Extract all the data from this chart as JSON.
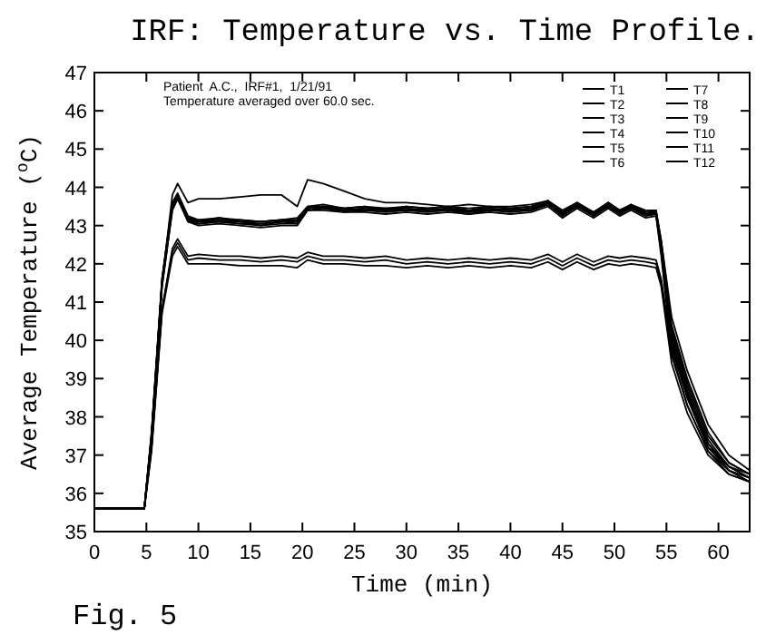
{
  "chart_data": {
    "type": "line",
    "title": "IRF: Temperature vs. Time Profile.",
    "xlabel": "Time (min)",
    "ylabel": "Average Temperature ($^{o}$C)",
    "annotations": [
      "Patient  A.C.,  IRF#1,  1/21/91",
      "Temperature averaged over 60.0 sec.",
      "Fig. 5"
    ],
    "x": [
      0,
      4.8,
      5.5,
      6.5,
      7.5,
      8,
      9,
      10,
      12,
      14,
      16,
      18,
      19.5,
      20.5,
      22,
      24,
      26,
      28,
      30,
      32,
      34,
      36,
      38,
      40,
      42,
      43.6,
      45,
      46.4,
      48,
      49.4,
      50.5,
      51.6,
      53,
      54,
      54.5,
      55.5,
      57,
      59,
      61,
      63
    ],
    "xlim": [
      0,
      63
    ],
    "xticks": [
      0,
      5,
      10,
      15,
      20,
      25,
      30,
      35,
      40,
      45,
      50,
      55,
      60
    ],
    "ylim": [
      35,
      47
    ],
    "yticks": [
      35,
      36,
      37,
      38,
      39,
      40,
      41,
      42,
      43,
      44,
      45,
      46,
      47
    ],
    "grid": false,
    "legend": "top right",
    "marker": "none",
    "line_style": "solid",
    "series": [
      {
        "name": "T1",
        "color": "#000000",
        "values": [
          35.6,
          35.6,
          37.5,
          41.5,
          43.8,
          44.1,
          43.6,
          43.7,
          43.7,
          43.75,
          43.8,
          43.8,
          43.5,
          44.2,
          44.1,
          43.9,
          43.7,
          43.6,
          43.6,
          43.55,
          43.5,
          43.55,
          43.5,
          43.5,
          43.55,
          43.65,
          43.4,
          43.6,
          43.35,
          43.6,
          43.4,
          43.55,
          43.4,
          43.4,
          42.5,
          40.0,
          38.6,
          37.3,
          36.7,
          36.5
        ]
      },
      {
        "name": "T2",
        "color": "#000000",
        "values": [
          35.6,
          35.6,
          37.5,
          41.5,
          43.5,
          43.8,
          43.2,
          43.1,
          43.15,
          43.1,
          43.05,
          43.1,
          43.1,
          43.45,
          43.5,
          43.4,
          43.45,
          43.4,
          43.45,
          43.4,
          43.45,
          43.35,
          43.45,
          43.4,
          43.45,
          43.6,
          43.3,
          43.55,
          43.3,
          43.55,
          43.35,
          43.5,
          43.3,
          43.35,
          42.5,
          40.2,
          38.8,
          37.4,
          36.7,
          36.4
        ]
      },
      {
        "name": "T3",
        "color": "#000000",
        "values": [
          35.6,
          35.6,
          37.6,
          41.6,
          43.6,
          43.85,
          43.25,
          43.15,
          43.2,
          43.15,
          43.1,
          43.15,
          43.15,
          43.5,
          43.55,
          43.45,
          43.5,
          43.45,
          43.5,
          43.45,
          43.5,
          43.4,
          43.5,
          43.45,
          43.5,
          43.65,
          43.35,
          43.6,
          43.35,
          43.6,
          43.4,
          43.55,
          43.35,
          43.4,
          42.6,
          40.4,
          39.0,
          37.6,
          36.8,
          36.5
        ]
      },
      {
        "name": "T4",
        "color": "#000000",
        "values": [
          35.6,
          35.6,
          37.4,
          41.4,
          43.4,
          43.7,
          43.15,
          43.05,
          43.1,
          43.05,
          43.0,
          43.05,
          43.05,
          43.4,
          43.45,
          43.35,
          43.4,
          43.35,
          43.4,
          43.35,
          43.4,
          43.3,
          43.4,
          43.35,
          43.4,
          43.55,
          43.25,
          43.5,
          43.25,
          43.5,
          43.3,
          43.45,
          43.25,
          43.3,
          42.3,
          39.9,
          38.5,
          37.2,
          36.6,
          36.3
        ]
      },
      {
        "name": "T5",
        "color": "#000000",
        "values": [
          35.6,
          35.6,
          37.5,
          41.5,
          43.55,
          43.75,
          43.1,
          43.05,
          43.1,
          43.1,
          43.0,
          43.1,
          43.1,
          43.45,
          43.5,
          43.45,
          43.4,
          43.45,
          43.4,
          43.45,
          43.4,
          43.4,
          43.4,
          43.45,
          43.4,
          43.6,
          43.3,
          43.5,
          43.3,
          43.5,
          43.35,
          43.5,
          43.3,
          43.3,
          42.4,
          40.1,
          38.7,
          37.3,
          36.7,
          36.4
        ]
      },
      {
        "name": "T6",
        "color": "#000000",
        "values": [
          35.6,
          35.6,
          37.6,
          41.6,
          43.6,
          43.8,
          43.2,
          43.15,
          43.15,
          43.15,
          43.1,
          43.15,
          43.2,
          43.5,
          43.5,
          43.45,
          43.5,
          43.4,
          43.5,
          43.45,
          43.5,
          43.45,
          43.5,
          43.45,
          43.5,
          43.65,
          43.3,
          43.6,
          43.3,
          43.6,
          43.35,
          43.55,
          43.3,
          43.35,
          42.6,
          40.6,
          39.2,
          37.8,
          37.0,
          36.6
        ]
      },
      {
        "name": "T7",
        "color": "#000000",
        "values": [
          35.6,
          35.6,
          37.4,
          41.4,
          43.45,
          43.7,
          43.1,
          43.0,
          43.05,
          43.0,
          42.95,
          43.0,
          43.0,
          43.4,
          43.4,
          43.35,
          43.35,
          43.3,
          43.35,
          43.3,
          43.35,
          43.3,
          43.35,
          43.3,
          43.35,
          43.5,
          43.2,
          43.45,
          43.2,
          43.45,
          43.25,
          43.4,
          43.2,
          43.25,
          42.2,
          39.7,
          38.3,
          37.1,
          36.5,
          36.3
        ]
      },
      {
        "name": "T8",
        "color": "#000000",
        "values": [
          35.6,
          35.6,
          37.5,
          41.5,
          43.5,
          43.75,
          43.2,
          43.1,
          43.2,
          43.1,
          43.1,
          43.15,
          43.1,
          43.45,
          43.5,
          43.4,
          43.45,
          43.45,
          43.45,
          43.4,
          43.45,
          43.4,
          43.45,
          43.4,
          43.45,
          43.6,
          43.35,
          43.55,
          43.35,
          43.55,
          43.35,
          43.5,
          43.35,
          43.35,
          42.5,
          40.3,
          38.9,
          37.5,
          36.8,
          36.5
        ]
      },
      {
        "name": "T9",
        "color": "#000000",
        "values": [
          35.6,
          35.6,
          37.5,
          41.5,
          43.55,
          43.8,
          43.15,
          43.1,
          43.1,
          43.05,
          43.05,
          43.1,
          43.05,
          43.45,
          43.45,
          43.4,
          43.4,
          43.4,
          43.4,
          43.4,
          43.4,
          43.35,
          43.4,
          43.4,
          43.4,
          43.55,
          43.3,
          43.5,
          43.3,
          43.5,
          43.3,
          43.45,
          43.3,
          43.3,
          42.4,
          40.0,
          38.6,
          37.3,
          36.6,
          36.4
        ]
      },
      {
        "name": "T10",
        "color": "#000000",
        "values": [
          35.6,
          35.6,
          37.2,
          40.8,
          42.4,
          42.65,
          42.2,
          42.25,
          42.2,
          42.2,
          42.15,
          42.2,
          42.15,
          42.3,
          42.2,
          42.2,
          42.15,
          42.2,
          42.1,
          42.15,
          42.1,
          42.15,
          42.1,
          42.15,
          42.1,
          42.25,
          42.05,
          42.25,
          42.05,
          42.2,
          42.15,
          42.2,
          42.15,
          42.1,
          41.6,
          39.8,
          38.5,
          37.2,
          36.7,
          36.4
        ]
      },
      {
        "name": "T11",
        "color": "#000000",
        "values": [
          35.6,
          35.6,
          37.2,
          40.8,
          42.3,
          42.55,
          42.1,
          42.15,
          42.1,
          42.1,
          42.05,
          42.1,
          42.05,
          42.2,
          42.1,
          42.1,
          42.05,
          42.1,
          42.0,
          42.05,
          42.0,
          42.05,
          42.0,
          42.05,
          42.0,
          42.15,
          41.95,
          42.15,
          41.95,
          42.1,
          42.05,
          42.1,
          42.05,
          42.0,
          41.5,
          39.6,
          38.3,
          37.1,
          36.6,
          36.3
        ]
      },
      {
        "name": "T12",
        "color": "#000000",
        "values": [
          35.6,
          35.6,
          37.1,
          40.7,
          42.2,
          42.45,
          42.0,
          42.0,
          42.0,
          41.95,
          41.95,
          41.95,
          41.9,
          42.1,
          42.0,
          42.0,
          41.95,
          41.95,
          41.9,
          41.95,
          41.9,
          41.95,
          41.9,
          41.95,
          41.9,
          42.05,
          41.85,
          42.05,
          41.85,
          42.0,
          41.95,
          42.0,
          41.95,
          41.9,
          41.4,
          39.4,
          38.1,
          37.0,
          36.5,
          36.3
        ]
      }
    ]
  }
}
